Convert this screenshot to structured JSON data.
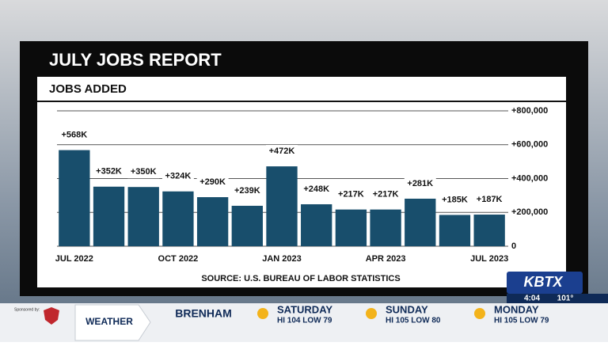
{
  "chart_data": {
    "type": "bar",
    "title": "JULY JOBS REPORT",
    "subtitle": "JOBS ADDED",
    "categories": [
      "JUL 2022",
      null,
      null,
      "OCT 2022",
      null,
      null,
      "JAN 2023",
      null,
      null,
      "APR 2023",
      null,
      null,
      "JUL 2023"
    ],
    "values": [
      568000,
      352000,
      350000,
      324000,
      290000,
      239000,
      472000,
      248000,
      217000,
      217000,
      281000,
      185000,
      187000
    ],
    "value_labels": [
      "+568K",
      "+352K",
      "+350K",
      "+324K",
      "+290K",
      "+239K",
      "+472K",
      "+248K",
      "+217K",
      "+217K",
      "+281K",
      "+185K",
      "+187K"
    ],
    "color": "#184e6c",
    "ylim": [
      0,
      800000
    ],
    "yticks": [
      0,
      {
        "value": 200000,
        "label": "+200,000"
      },
      {
        "value": 400000,
        "label": "+400,000"
      },
      {
        "value": 600000,
        "label": "+600,000"
      },
      {
        "value": 800000,
        "label": "+800,000"
      }
    ],
    "grid": true,
    "source": "SOURCE: U.S. BUREAU OF LABOR STATISTICS"
  },
  "ticker": {
    "station": "KBTX",
    "time": "4:04",
    "temperature": "101°",
    "sponsor": "Sponsored by:",
    "segment": "WEATHER",
    "city": "BRENHAM",
    "days": [
      {
        "day": "SATURDAY",
        "forecast": "HI 104 LOW 79"
      },
      {
        "day": "SUNDAY",
        "forecast": "HI 105 LOW 80"
      },
      {
        "day": "MONDAY",
        "forecast": "HI 105 LOW 79"
      }
    ]
  }
}
